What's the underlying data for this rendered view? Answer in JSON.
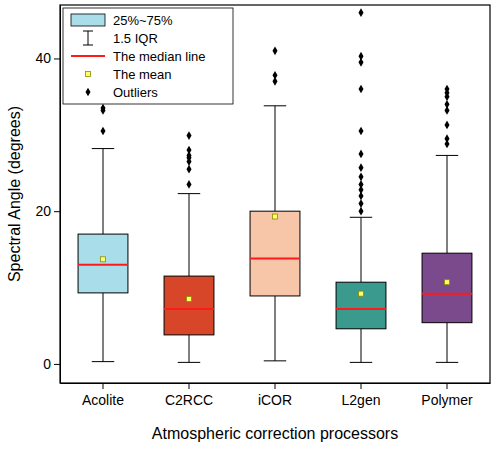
{
  "chart_data": {
    "type": "box",
    "x_label": "Atmospheric correction processors",
    "y_label": "Spectral Angle (degrees)",
    "categories": [
      "Acolite",
      "C2RCC",
      "iCOR",
      "L2gen",
      "Polymer"
    ],
    "colors": [
      "#a8dde9",
      "#d8462a",
      "#f7c5a8",
      "#3a9a8e",
      "#7a4a8c"
    ],
    "boxes": [
      {
        "min": 0.3,
        "q1": 9.3,
        "median": 13,
        "mean": 13.7,
        "q3": 17,
        "max": 28.2,
        "outliers": [
          30.5,
          33.2,
          33.5
        ]
      },
      {
        "min": 0.2,
        "q1": 3.8,
        "median": 7.2,
        "mean": 8.5,
        "q3": 11.5,
        "max": 22.3,
        "outliers": [
          23.5,
          25.5,
          26.5,
          27,
          27.3,
          28,
          29.9
        ]
      },
      {
        "min": 0.4,
        "q1": 8.9,
        "median": 13.8,
        "mean": 19.3,
        "q3": 20,
        "max": 33.8,
        "outliers": [
          37,
          37.8,
          41
        ]
      },
      {
        "min": 0.2,
        "q1": 4.6,
        "median": 7.2,
        "mean": 9.2,
        "q3": 10.7,
        "max": 19.2,
        "outliers": [
          20,
          21,
          22,
          22.8,
          23.5,
          24.5,
          25.7,
          27.5,
          30.5,
          36,
          39.5,
          40.3,
          46
        ]
      },
      {
        "min": 0.2,
        "q1": 5.4,
        "median": 9.2,
        "mean": 10.7,
        "q3": 14.5,
        "max": 27.3,
        "outliers": [
          28.8,
          29.5,
          31.3,
          33.2,
          34,
          35,
          35.5,
          36
        ]
      }
    ],
    "ylim": [
      -2.5,
      47
    ],
    "yticks": [
      0,
      20,
      40
    ],
    "grid": false,
    "legend": "upper left",
    "legend_labels": [
      "25%~75%",
      "1.5 IQR",
      "The median line",
      "The mean",
      "Outliers"
    ]
  }
}
